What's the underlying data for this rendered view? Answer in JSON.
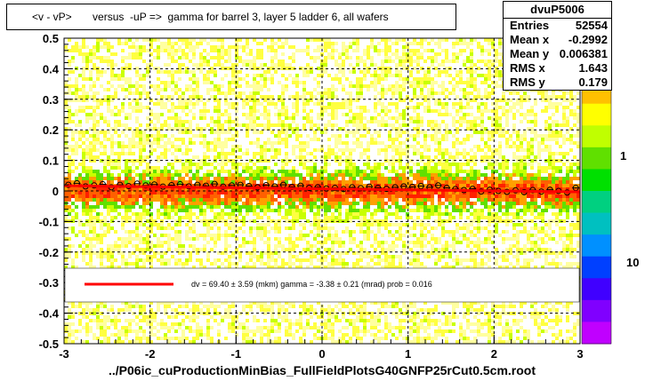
{
  "title": "<v - vP>       versus  -uP =>  gamma for barrel 3, layer 5 ladder 6, all wafers",
  "stats": {
    "name": "dvuP5006",
    "rows": [
      {
        "label": "Entries",
        "value": "52554"
      },
      {
        "label": "Mean x",
        "value": "-0.2992"
      },
      {
        "label": "Mean y",
        "value": "0.006381"
      },
      {
        "label": "RMS x",
        "value": "1.643"
      },
      {
        "label": "RMS y",
        "value": "0.179"
      }
    ]
  },
  "fit_text": "dv =    69.40 ±   3.59 (mkm) gamma =    -3.38 ±   0.21 (mrad) prob = 0.016",
  "xlabel": "../P06ic_cuProductionMinBias_FullFieldPlotsG40GNFP25rCut0.5cm.root",
  "colorbar_labels": [
    "1",
    "10"
  ],
  "colors": {
    "fit_line": "#ff0000",
    "gradient": [
      "#ffffa0",
      "#ffff40",
      "#c8ff00",
      "#60e000",
      "#ffa000",
      "#ff6000",
      "#ff2000"
    ],
    "colorbar": [
      "#ff0000",
      "#ff7000",
      "#ffc000",
      "#ffff00",
      "#c0ff00",
      "#60e000",
      "#00e000",
      "#00d080",
      "#00c0c0",
      "#0090ff",
      "#0040ff",
      "#4000ff",
      "#8000ff",
      "#c000ff"
    ]
  },
  "chart_data": {
    "type": "heatmap",
    "xlim": [
      -3,
      3
    ],
    "ylim": [
      -0.5,
      0.5
    ],
    "x_ticks": [
      "-3",
      "-2",
      "-1",
      "0",
      "1",
      "2",
      "3"
    ],
    "y_ticks": [
      "-0.5",
      "-0.4",
      "-0.3",
      "-0.2",
      "-0.1",
      "0",
      "0.1",
      "0.2",
      "0.3",
      "0.4",
      "0.5"
    ],
    "grid": true,
    "fit_line": {
      "x": [
        -3,
        3
      ],
      "y": [
        0.017,
        -0.003
      ]
    },
    "profile": {
      "x": [
        -2.95,
        -2.85,
        -2.75,
        -2.65,
        -2.55,
        -2.45,
        -2.35,
        -2.25,
        -2.15,
        -2.05,
        -1.95,
        -1.85,
        -1.75,
        -1.65,
        -1.55,
        -1.45,
        -1.35,
        -1.25,
        -1.15,
        -1.05,
        -0.95,
        -0.85,
        -0.75,
        -0.65,
        -0.55,
        -0.45,
        -0.35,
        -0.25,
        -0.15,
        -0.05,
        0.05,
        0.15,
        0.25,
        0.35,
        0.45,
        0.55,
        0.65,
        0.75,
        0.85,
        0.95,
        1.05,
        1.15,
        1.25,
        1.35,
        1.45,
        1.55,
        1.65,
        1.75,
        1.85,
        1.95,
        2.05,
        2.15,
        2.25,
        2.35,
        2.45,
        2.55,
        2.65,
        2.75,
        2.85,
        2.95
      ],
      "y": [
        0.02,
        0.025,
        0.015,
        0.018,
        0.022,
        0.012,
        0.02,
        0.016,
        0.024,
        0.018,
        0.021,
        0.014,
        0.019,
        0.022,
        0.015,
        0.02,
        0.017,
        0.023,
        0.014,
        0.018,
        0.02,
        0.016,
        0.012,
        0.019,
        0.015,
        0.02,
        0.013,
        0.017,
        0.01,
        0.012,
        0.008,
        0.01,
        0.006,
        0.012,
        0.009,
        0.014,
        0.01,
        0.007,
        0.012,
        0.015,
        0.013,
        0.016,
        0.012,
        0.018,
        0.01,
        0.006,
        0.003,
        0.007,
        -0.002,
        0.004,
        0.0,
        -0.003,
        0.002,
        -0.004,
        0.003,
        -0.002,
        0.004,
        0.0,
        -0.005,
        0.01
      ]
    }
  }
}
